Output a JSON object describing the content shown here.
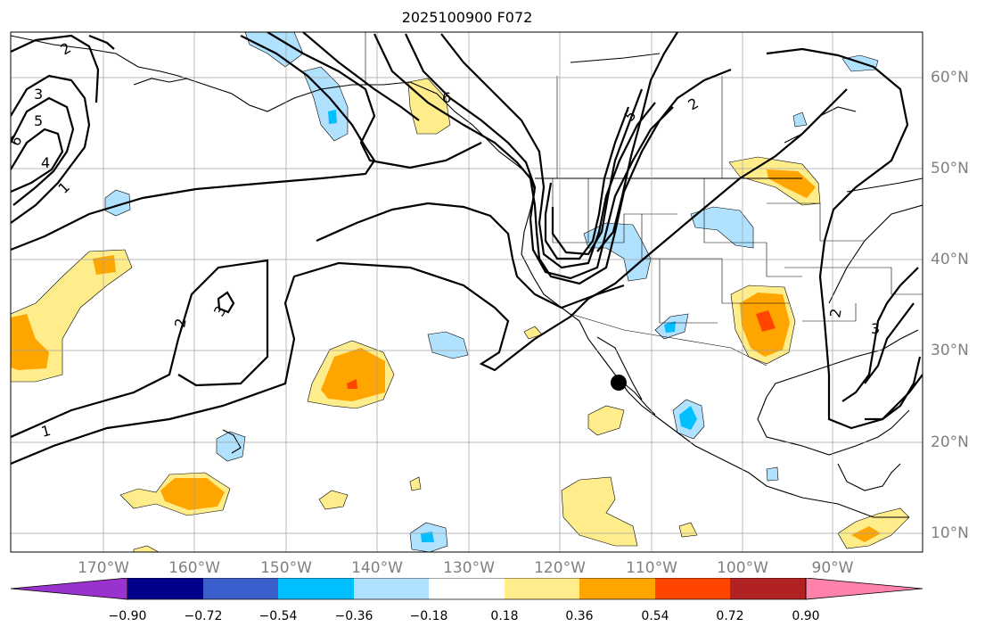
{
  "title": "2025100900 F072",
  "map": {
    "projection": "PlateCarree",
    "region": "North Pacific / North America",
    "lon_labels": [
      "170°W",
      "160°W",
      "150°W",
      "140°W",
      "130°W",
      "120°W",
      "110°W",
      "100°W",
      "90°W"
    ],
    "lat_labels": [
      "60°N",
      "50°N",
      "40°N",
      "30°N",
      "20°N",
      "10°N"
    ],
    "contour_labels": [
      "2",
      "3",
      "5",
      "6",
      "4",
      "1",
      "6",
      "5",
      "2",
      "2",
      "3",
      "1",
      "2",
      "3"
    ],
    "marker": "black-dot",
    "colors": {
      "ocean": "#ffffff",
      "gridline": "#a0a0a0",
      "coastline": "#000000",
      "contour": "#000000"
    }
  },
  "colorbar": {
    "tick_labels": [
      "−0.90",
      "−0.72",
      "−0.54",
      "−0.36",
      "−0.18",
      "0.18",
      "0.36",
      "0.54",
      "0.72",
      "0.90"
    ],
    "colors": [
      "#9a32cd",
      "#00008b",
      "#3a5fcd",
      "#00bfff",
      "#b0e2ff",
      "#ffffff",
      "#ffec8b",
      "#ffa500",
      "#ff4500",
      "#b22222",
      "#ff82ab"
    ]
  }
}
